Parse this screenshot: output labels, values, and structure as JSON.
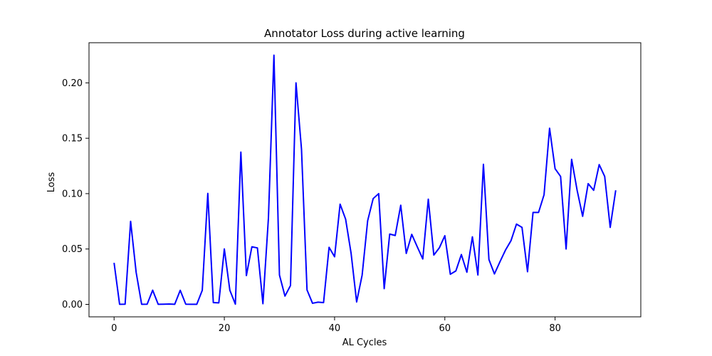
{
  "chart_data": {
    "type": "line",
    "title": "Annotator Loss during active learning",
    "xlabel": "AL Cycles",
    "ylabel": "Loss",
    "xlim": [
      -4.55,
      95.55
    ],
    "ylim": [
      -0.01125,
      0.23625
    ],
    "xticks": [
      0,
      20,
      40,
      60,
      80
    ],
    "yticks": [
      0.0,
      0.05,
      0.1,
      0.15,
      0.2
    ],
    "xtick_labels": [
      "0",
      "20",
      "40",
      "60",
      "80"
    ],
    "ytick_labels": [
      "0.00",
      "0.05",
      "0.10",
      "0.15",
      "0.20"
    ],
    "grid": false,
    "series": [
      {
        "color": "#0000ff",
        "x": [
          0,
          1,
          2,
          3,
          4,
          5,
          6,
          7,
          8,
          9,
          10,
          11,
          12,
          13,
          14,
          15,
          16,
          17,
          18,
          19,
          20,
          21,
          22,
          23,
          24,
          25,
          26,
          27,
          28,
          29,
          30,
          31,
          32,
          33,
          34,
          35,
          36,
          37,
          38,
          39,
          40,
          41,
          42,
          43,
          44,
          45,
          46,
          47,
          48,
          49,
          50,
          51,
          52,
          53,
          54,
          55,
          56,
          57,
          58,
          59,
          60,
          61,
          62,
          63,
          64,
          65,
          66,
          67,
          68,
          69,
          70,
          71,
          72,
          73,
          74,
          75,
          76,
          77,
          78,
          79,
          80,
          81,
          82,
          83,
          84,
          85,
          86,
          87,
          88,
          89,
          90,
          91
        ],
        "values": [
          0.0375,
          0.0001,
          0.0002,
          0.075,
          0.029,
          0.0001,
          0.0002,
          0.0128,
          0.0001,
          0.0002,
          0.0003,
          0.0001,
          0.0127,
          0.0002,
          0.0001,
          0.0001,
          0.0127,
          0.1002,
          0.0016,
          0.0014,
          0.0501,
          0.0128,
          0.0002,
          0.1375,
          0.026,
          0.052,
          0.051,
          0.0006,
          0.078,
          0.225,
          0.0265,
          0.0075,
          0.017,
          0.2,
          0.14,
          0.013,
          0.001,
          0.002,
          0.0016,
          0.0515,
          0.043,
          0.0905,
          0.077,
          0.046,
          0.0022,
          0.0265,
          0.0755,
          0.0955,
          0.1,
          0.0142,
          0.0635,
          0.0622,
          0.0895,
          0.046,
          0.0632,
          0.052,
          0.041,
          0.095,
          0.0445,
          0.051,
          0.062,
          0.0272,
          0.0302,
          0.045,
          0.029,
          0.061,
          0.0265,
          0.1265,
          0.0405,
          0.0275,
          0.0385,
          0.049,
          0.0575,
          0.0725,
          0.0695,
          0.0295,
          0.083,
          0.083,
          0.099,
          0.159,
          0.1225,
          0.1155,
          0.05,
          0.131,
          0.103,
          0.0795,
          0.109,
          0.103,
          0.1262,
          0.1155,
          0.0695,
          0.103
        ]
      }
    ]
  }
}
